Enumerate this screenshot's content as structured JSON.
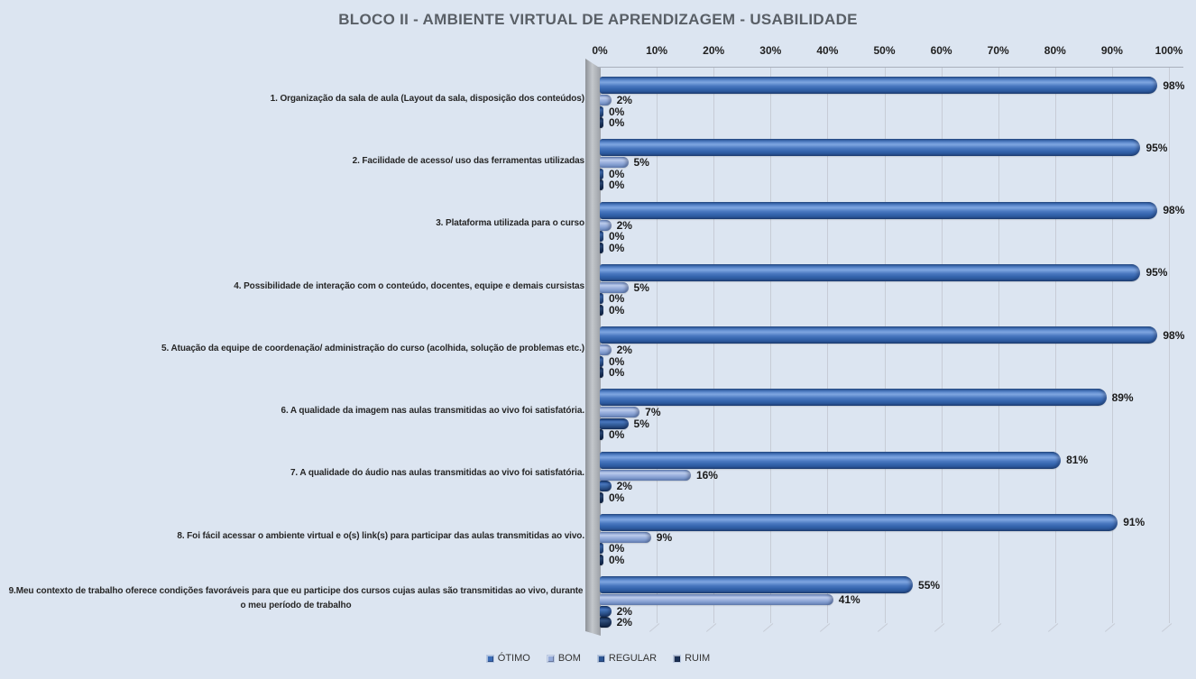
{
  "title": "BLOCO II - AMBIENTE VIRTUAL DE APRENDIZAGEM - USABILIDADE",
  "chart_data": {
    "type": "bar",
    "orientation": "horizontal",
    "title": "BLOCO II - AMBIENTE VIRTUAL DE APRENDIZAGEM - USABILIDADE",
    "categories": [
      "1. Organização da sala de aula (Layout da sala, disposição dos conteúdos)",
      "2. Facilidade de acesso/ uso das ferramentas utilizadas",
      "3. Plataforma utilizada para o curso",
      "4. Possibilidade de interação com o conteúdo, docentes, equipe e demais cursistas",
      "5. Atuação da equipe de coordenação/ administração do curso (acolhida, solução de problemas etc.)",
      "6. A qualidade da imagem nas aulas transmitidas ao vivo foi satisfatória.",
      "7. A qualidade do áudio nas aulas transmitidas ao vivo foi satisfatória.",
      "8. Foi fácil acessar o ambiente virtual e o(s) link(s) para participar das aulas transmitidas ao vivo.",
      "9.Meu contexto de trabalho oferece condições favoráveis para que eu participe dos cursos cujas aulas são transmitidas ao vivo, durante o meu período de trabalho"
    ],
    "series": [
      {
        "name": "ÓTIMO",
        "color": "#3A6BB5",
        "values": [
          98,
          95,
          98,
          95,
          98,
          89,
          81,
          91,
          55
        ]
      },
      {
        "name": "BOM",
        "color": "#95ABD9",
        "values": [
          2,
          5,
          2,
          5,
          2,
          7,
          16,
          9,
          41
        ]
      },
      {
        "name": "REGULAR",
        "color": "#2B5594",
        "values": [
          0,
          0,
          0,
          0,
          0,
          5,
          2,
          0,
          2
        ]
      },
      {
        "name": "RUIM",
        "color": "#1B3055",
        "values": [
          0,
          0,
          0,
          0,
          0,
          0,
          0,
          0,
          2
        ]
      }
    ],
    "x_axis": {
      "ticks": [
        "0%",
        "10%",
        "20%",
        "30%",
        "40%",
        "50%",
        "60%",
        "70%",
        "80%",
        "90%",
        "100%"
      ],
      "min": 0,
      "max": 100,
      "position": "top"
    },
    "value_suffix": "%",
    "data_labels": true,
    "grid": true,
    "legend_position": "bottom",
    "style": "excel-3d-glossy"
  }
}
